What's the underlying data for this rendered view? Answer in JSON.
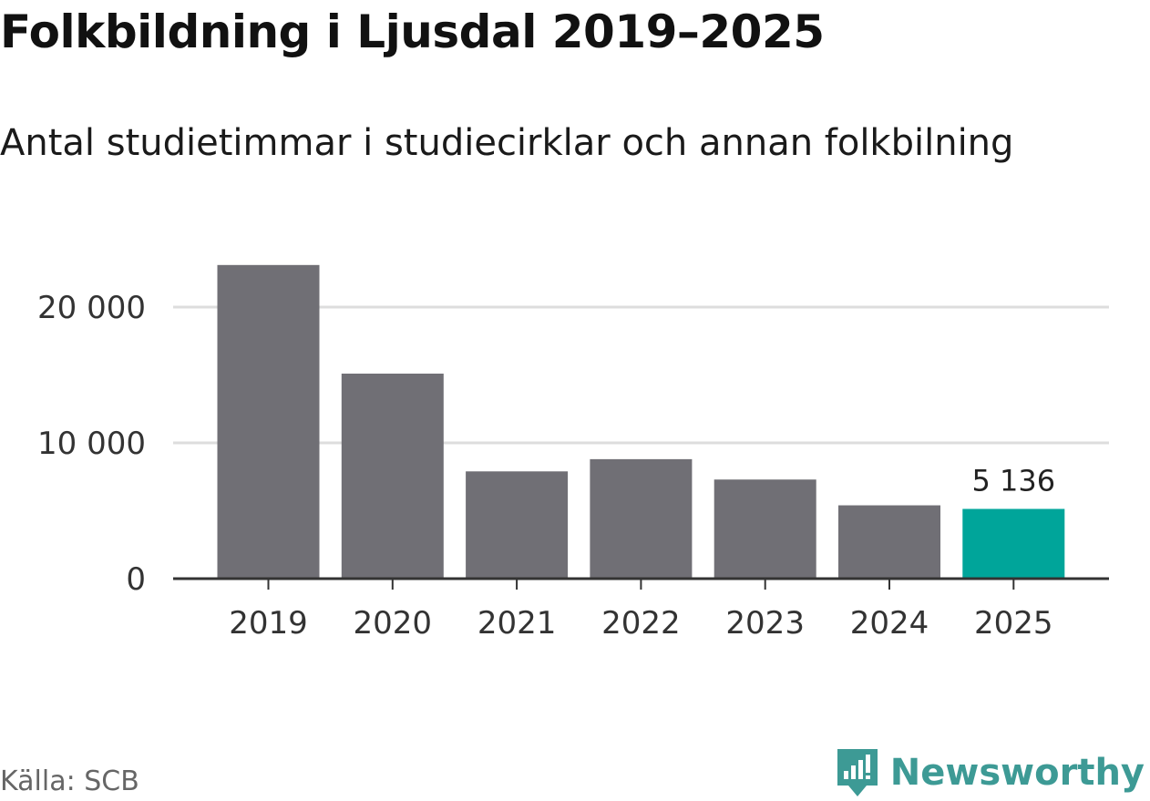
{
  "header": {
    "title": "Folkbildning i Ljusdal 2019–2025",
    "subtitle": "Antal studietimmar i studiecirklar och annan folkbilning"
  },
  "footer": {
    "source": "Källa: SCB",
    "brand": "Newsworthy"
  },
  "colors": {
    "bar": "#706f75",
    "highlight": "#00a59a",
    "grid": "#dddddd",
    "axis": "#333333",
    "brand": "#3d9a95"
  },
  "chart_data": {
    "type": "bar",
    "title": "Folkbildning i Ljusdal 2019–2025",
    "subtitle": "Antal studietimmar i studiecirklar och annan folkbilning",
    "categories": [
      "2019",
      "2020",
      "2021",
      "2022",
      "2023",
      "2024",
      "2025"
    ],
    "values": [
      23100,
      15100,
      7900,
      8800,
      7300,
      5400,
      5136
    ],
    "highlight_index": 6,
    "data_labels": [
      {
        "index": 6,
        "text": "5 136"
      }
    ],
    "ylim": [
      0,
      24000
    ],
    "yticks": [
      {
        "value": 0,
        "label": "0"
      },
      {
        "value": 10000,
        "label": "10 000"
      },
      {
        "value": 20000,
        "label": "20 000"
      }
    ],
    "xlabel": "",
    "ylabel": "",
    "grid": true,
    "legend": "none"
  }
}
